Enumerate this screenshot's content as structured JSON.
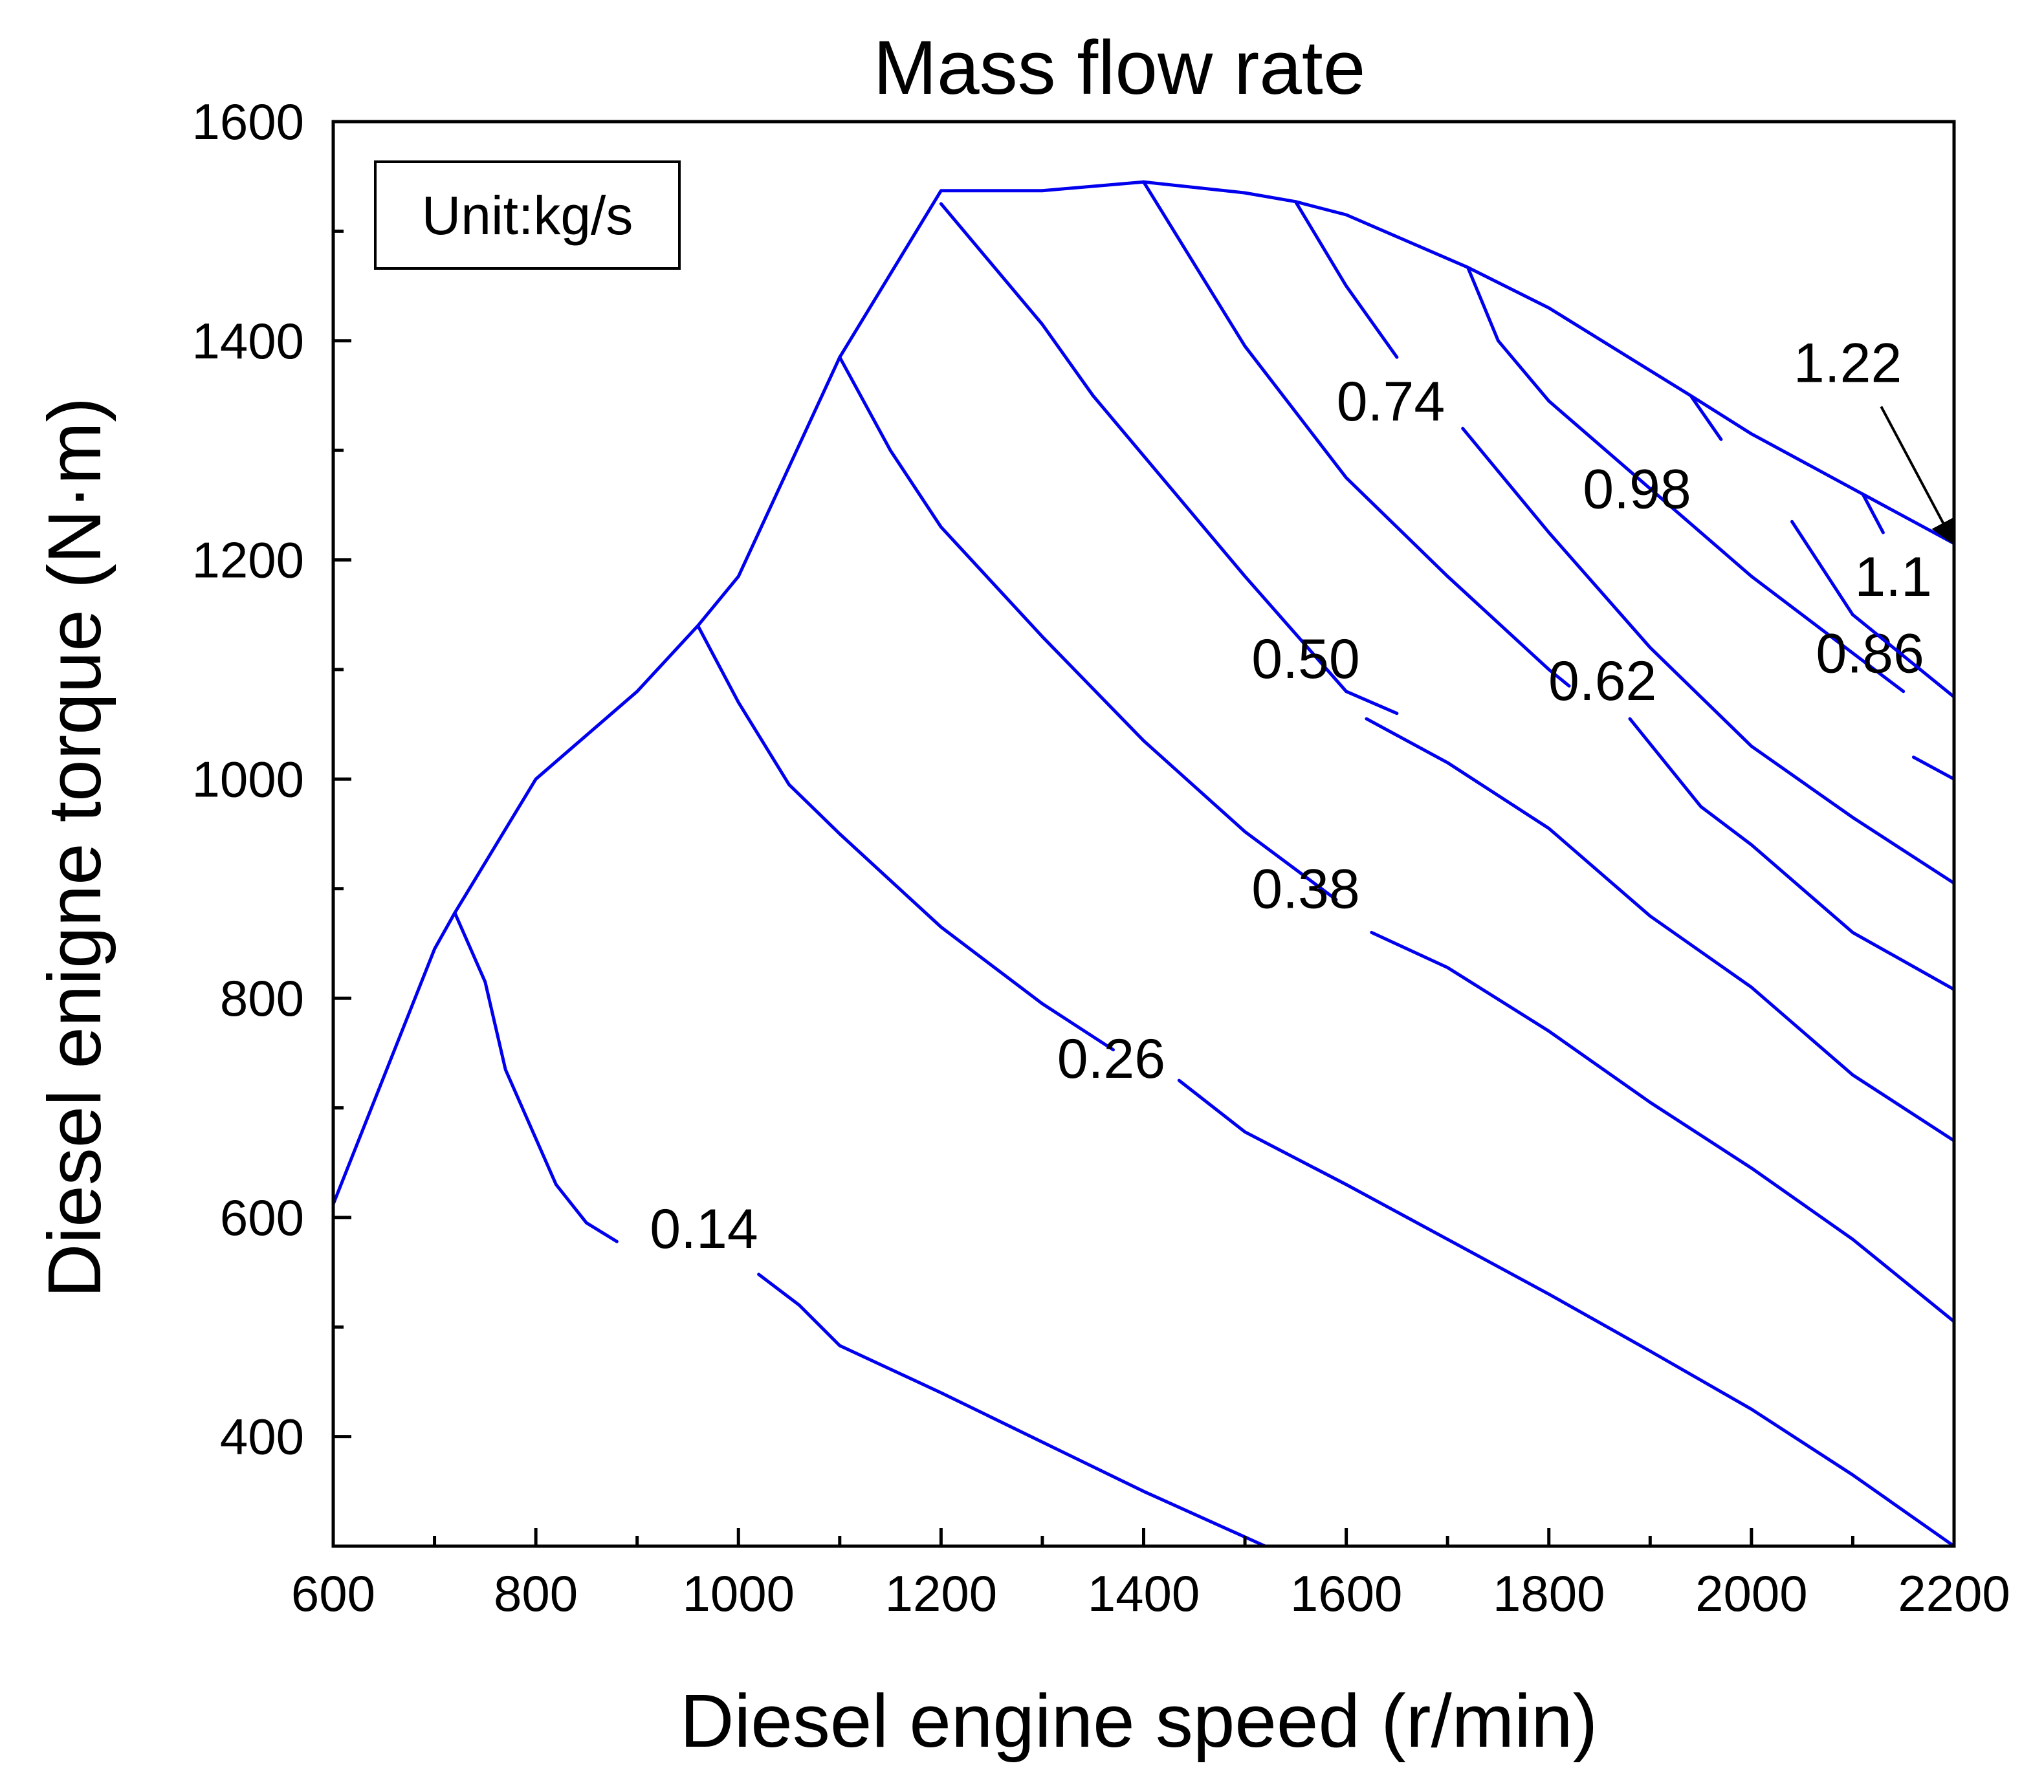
{
  "chart_data": {
    "type": "contour",
    "title": "Mass flow rate",
    "xlabel": "Diesel engine speed (r/min)",
    "ylabel": "Diesel enigne torque (N·m)",
    "unit_note": "Unit:kg/s",
    "xlim": [
      600,
      2200
    ],
    "ylim": [
      300,
      1600
    ],
    "x_ticks": [
      600,
      800,
      1000,
      1200,
      1400,
      1600,
      1800,
      2000,
      2200
    ],
    "x_tick_labels": [
      "600",
      "800",
      "1000",
      "1200",
      "1400",
      "1600",
      "1800",
      "2000",
      "2200"
    ],
    "y_ticks": [
      400,
      600,
      800,
      1000,
      1200,
      1400,
      1600
    ],
    "y_tick_labels": [
      "400",
      "600",
      "800",
      "1000",
      "1200",
      "1400",
      "1600"
    ],
    "x_minor_step": 100,
    "y_minor_step": 100,
    "boundary": [
      [
        600,
        612
      ],
      [
        700,
        845
      ],
      [
        720,
        878
      ],
      [
        800,
        1000
      ],
      [
        900,
        1080
      ],
      [
        960,
        1140
      ],
      [
        1000,
        1185
      ],
      [
        1100,
        1385
      ],
      [
        1200,
        1537
      ],
      [
        1300,
        1537
      ],
      [
        1400,
        1545
      ],
      [
        1500,
        1535
      ],
      [
        1550,
        1527
      ],
      [
        1600,
        1515
      ],
      [
        1720,
        1467
      ],
      [
        1800,
        1430
      ],
      [
        1940,
        1350
      ],
      [
        2000,
        1315
      ],
      [
        2110,
        1260
      ],
      [
        2200,
        1215
      ]
    ],
    "series": [
      {
        "name": "0.14",
        "label": "0.14",
        "label_at": [
          966,
          590
        ],
        "segments": [
          [
            [
              720,
              878
            ],
            [
              750,
              815
            ],
            [
              770,
              735
            ],
            [
              820,
              630
            ],
            [
              850,
              595
            ],
            [
              880,
              578
            ]
          ],
          [
            [
              1020,
              548
            ],
            [
              1060,
              520
            ],
            [
              1100,
              483
            ],
            [
              1200,
              440
            ],
            [
              1300,
              395
            ],
            [
              1400,
              350
            ],
            [
              1520,
              300
            ]
          ]
        ]
      },
      {
        "name": "0.26",
        "label": "0.26",
        "label_at": [
          1368,
          745
        ],
        "segments": [
          [
            [
              960,
              1140
            ],
            [
              1000,
              1070
            ],
            [
              1050,
              995
            ],
            [
              1100,
              950
            ],
            [
              1200,
              865
            ],
            [
              1300,
              795
            ],
            [
              1370,
              753
            ]
          ],
          [
            [
              1435,
              725
            ],
            [
              1500,
              678
            ],
            [
              1600,
              630
            ],
            [
              1700,
              580
            ],
            [
              1800,
              530
            ],
            [
              1900,
              478
            ],
            [
              2000,
              425
            ],
            [
              2100,
              365
            ],
            [
              2200,
              300
            ]
          ]
        ]
      },
      {
        "name": "0.38",
        "label": "0.38",
        "label_at": [
          1560,
          900
        ],
        "segments": [
          [
            [
              1100,
              1385
            ],
            [
              1150,
              1300
            ],
            [
              1200,
              1230
            ],
            [
              1300,
              1130
            ],
            [
              1400,
              1035
            ],
            [
              1500,
              952
            ],
            [
              1590,
              890
            ]
          ],
          [
            [
              1625,
              860
            ],
            [
              1700,
              828
            ],
            [
              1800,
              770
            ],
            [
              1900,
              705
            ],
            [
              2000,
              645
            ],
            [
              2100,
              580
            ],
            [
              2200,
              505
            ]
          ]
        ]
      },
      {
        "name": "0.50",
        "label": "0.50",
        "label_at": [
          1560,
          1110
        ],
        "segments": [
          [
            [
              1200,
              1525
            ],
            [
              1300,
              1415
            ],
            [
              1350,
              1350
            ],
            [
              1400,
              1295
            ],
            [
              1500,
              1185
            ],
            [
              1600,
              1080
            ],
            [
              1650,
              1060
            ]
          ],
          [
            [
              1620,
              1055
            ],
            [
              1700,
              1015
            ],
            [
              1800,
              955
            ],
            [
              1900,
              875
            ],
            [
              2000,
              810
            ],
            [
              2100,
              730
            ],
            [
              2200,
              670
            ]
          ]
        ]
      },
      {
        "name": "0.62",
        "label": "0.62",
        "label_at": [
          1853,
          1090
        ],
        "segments": [
          [
            [
              1400,
              1545
            ],
            [
              1500,
              1395
            ],
            [
              1600,
              1275
            ],
            [
              1700,
              1185
            ],
            [
              1800,
              1100
            ],
            [
              1820,
              1085
            ]
          ],
          [
            [
              1880,
              1055
            ],
            [
              1950,
              975
            ],
            [
              2000,
              940
            ],
            [
              2100,
              860
            ],
            [
              2200,
              808
            ]
          ]
        ]
      },
      {
        "name": "0.74",
        "label": "0.74",
        "label_at": [
          1644,
          1345
        ],
        "segments": [
          [
            [
              1550,
              1527
            ],
            [
              1600,
              1450
            ],
            [
              1650,
              1385
            ]
          ],
          [
            [
              1715,
              1320
            ],
            [
              1800,
              1225
            ],
            [
              1900,
              1120
            ],
            [
              2000,
              1030
            ],
            [
              2100,
              965
            ],
            [
              2200,
              905
            ]
          ]
        ]
      },
      {
        "name": "0.86",
        "label": "0.86",
        "label_at": [
          2117,
          1115
        ],
        "segments": [
          [
            [
              1720,
              1467
            ],
            [
              1750,
              1400
            ],
            [
              1800,
              1345
            ],
            [
              1900,
              1265
            ],
            [
              2000,
              1185
            ],
            [
              2100,
              1115
            ],
            [
              2150,
              1080
            ]
          ],
          [
            [
              2160,
              1020
            ],
            [
              2200,
              1000
            ]
          ]
        ]
      },
      {
        "name": "0.98",
        "label": "0.98",
        "label_at": [
          1887,
          1265
        ],
        "segments": [
          [
            [
              1940,
              1350
            ],
            [
              1970,
              1310
            ]
          ],
          [
            [
              2040,
              1235
            ],
            [
              2100,
              1150
            ],
            [
              2200,
              1075
            ]
          ]
        ]
      },
      {
        "name": "1.1",
        "label": "1.1",
        "label_at": [
          2140,
          1185
        ],
        "segments": [
          [
            [
              2110,
              1260
            ],
            [
              2130,
              1225
            ]
          ],
          [
            [
              2195,
              1155
            ]
          ]
        ]
      },
      {
        "name": "1.22",
        "label": "1.22",
        "label_at": [
          2095,
          1380
        ],
        "segments": []
      }
    ],
    "arrow_annotation": {
      "label": "1.22",
      "from": [
        2128,
        1340
      ],
      "to": [
        2200,
        1215
      ]
    }
  }
}
